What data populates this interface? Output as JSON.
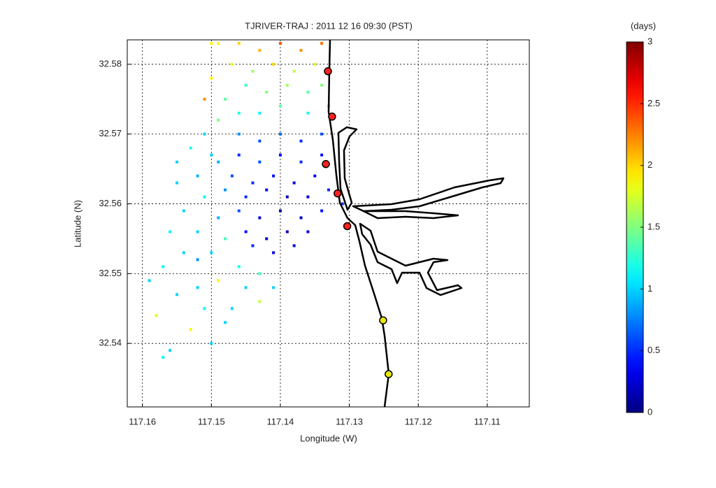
{
  "chart_data": {
    "type": "scatter",
    "title": "TJRIVER-TRAJ : 2011 12 16 09:30 (PST)",
    "x_label": "Longitude (W)",
    "y_label": "Latitude (N)",
    "xlim": [
      117.1622,
      117.1039
    ],
    "ylim": [
      32.5309,
      32.5835
    ],
    "xticks": [
      117.16,
      117.15,
      117.14,
      117.13,
      117.12,
      117.11
    ],
    "yticks": [
      32.54,
      32.55,
      32.56,
      32.57,
      32.58
    ],
    "grid": true,
    "colormap": "jet",
    "x": [
      117.134,
      117.137,
      117.14,
      117.143,
      117.146,
      117.149,
      117.135,
      117.138,
      117.141,
      117.144,
      117.147,
      117.15,
      117.134,
      117.136,
      117.139,
      117.142,
      117.145,
      117.148,
      117.133,
      117.136,
      117.14,
      117.143,
      117.146,
      117.149,
      117.151,
      117.134,
      117.137,
      117.14,
      117.143,
      117.146,
      117.134,
      117.137,
      117.14,
      117.143,
      117.146,
      117.149,
      117.135,
      117.138,
      117.141,
      117.144,
      117.147,
      117.133,
      117.136,
      117.139,
      117.142,
      117.145,
      117.148,
      117.134,
      117.137,
      117.14,
      117.143,
      117.146,
      117.136,
      117.139,
      117.142,
      117.145,
      117.138,
      117.141,
      117.144,
      117.131,
      117.15,
      117.152,
      117.155,
      117.151,
      117.154,
      117.149,
      117.152,
      117.156,
      117.148,
      117.15,
      117.154,
      117.157,
      117.159,
      117.146,
      117.149,
      117.152,
      117.155,
      117.158,
      117.145,
      117.147,
      117.151,
      117.153,
      117.156,
      117.143,
      117.148,
      117.15,
      117.157,
      117.152,
      117.143,
      117.141,
      117.151,
      117.153,
      117.155,
      117.15
    ],
    "y": [
      32.583,
      32.582,
      32.583,
      32.582,
      32.583,
      32.583,
      32.58,
      32.579,
      32.58,
      32.579,
      32.58,
      32.578,
      32.577,
      32.576,
      32.577,
      32.576,
      32.577,
      32.575,
      32.574,
      32.573,
      32.574,
      32.573,
      32.573,
      32.572,
      32.575,
      32.57,
      32.569,
      32.57,
      32.569,
      32.57,
      32.567,
      32.566,
      32.567,
      32.566,
      32.567,
      32.566,
      32.564,
      32.563,
      32.564,
      32.563,
      32.564,
      32.562,
      32.561,
      32.561,
      32.562,
      32.561,
      32.562,
      32.559,
      32.558,
      32.559,
      32.558,
      32.559,
      32.556,
      32.556,
      32.555,
      32.556,
      32.554,
      32.553,
      32.554,
      32.56,
      32.567,
      32.564,
      32.563,
      32.561,
      32.559,
      32.558,
      32.556,
      32.556,
      32.555,
      32.553,
      32.553,
      32.551,
      32.549,
      32.551,
      32.549,
      32.548,
      32.547,
      32.544,
      32.548,
      32.545,
      32.545,
      32.542,
      32.539,
      32.546,
      32.543,
      32.54,
      32.538,
      32.552,
      32.55,
      32.548,
      32.57,
      32.568,
      32.566,
      32.583
    ],
    "values": [
      2.3,
      2.2,
      2.4,
      2.1,
      2.0,
      1.9,
      1.8,
      1.7,
      2.0,
      1.6,
      1.8,
      1.9,
      1.5,
      1.4,
      1.6,
      1.5,
      1.3,
      1.4,
      1.3,
      1.2,
      1.4,
      1.1,
      1.2,
      1.5,
      2.2,
      0.6,
      0.5,
      0.7,
      0.6,
      0.8,
      0.4,
      0.5,
      0.4,
      0.6,
      0.5,
      0.9,
      0.4,
      0.3,
      0.4,
      0.5,
      0.6,
      0.5,
      0.3,
      0.2,
      0.3,
      0.5,
      0.8,
      0.4,
      0.2,
      0.1,
      0.2,
      0.6,
      0.3,
      0.2,
      0.2,
      0.4,
      0.3,
      0.3,
      0.5,
      0.5,
      1.0,
      0.9,
      1.0,
      1.1,
      1.0,
      0.9,
      1.0,
      1.1,
      1.3,
      1.0,
      1.0,
      1.1,
      1.0,
      1.2,
      1.9,
      1.0,
      1.0,
      1.8,
      1.0,
      1.0,
      1.1,
      1.9,
      1.0,
      1.7,
      1.0,
      1.0,
      1.1,
      0.8,
      1.3,
      1.0,
      1.0,
      1.2,
      1.0,
      1.9
    ],
    "markers": {
      "x": [
        117.1331,
        117.1325,
        117.1334,
        117.1317,
        117.1303,
        117.1251,
        117.1243
      ],
      "y": [
        32.579,
        32.5725,
        32.5657,
        32.5615,
        32.5568,
        32.5433,
        32.5356
      ],
      "colors": [
        "#ff2020",
        "#ff2020",
        "#ff2020",
        "#ff2020",
        "#ff2020",
        "#e8e800",
        "#e8e800"
      ]
    },
    "colorbar": {
      "label": "(days)",
      "lim": [
        0,
        3
      ],
      "ticks": [
        0,
        0.5,
        1,
        1.5,
        2,
        2.5,
        3
      ]
    }
  }
}
